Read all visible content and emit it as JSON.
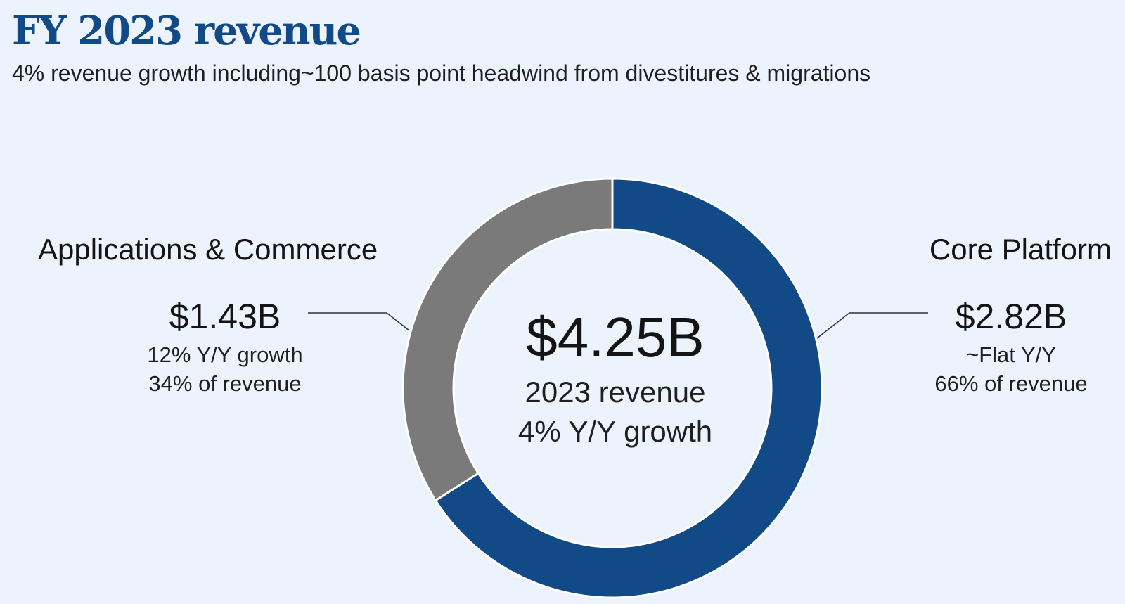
{
  "header": {
    "title": "FY 2023 revenue",
    "subtitle": "4% revenue growth including~100 basis point headwind from divestitures & migrations"
  },
  "center": {
    "total": "$4.25B",
    "line1": "2023 revenue",
    "line2": "4% Y/Y growth"
  },
  "segments": {
    "apps": {
      "name": "Applications & Commerce",
      "value": "$1.43B",
      "growth": "12% Y/Y growth",
      "share_text": "34% of revenue"
    },
    "core": {
      "name": "Core Platform",
      "value": "$2.82B",
      "growth": "~Flat Y/Y",
      "share_text": "66% of revenue"
    }
  },
  "chart_data": {
    "type": "pie",
    "donut": true,
    "total": 4.25,
    "unit": "$B",
    "slices": [
      {
        "name": "Core Platform",
        "value": 2.82,
        "percent": 66,
        "color": "#114a86"
      },
      {
        "name": "Applications & Commerce",
        "value": 1.43,
        "percent": 34,
        "color": "#7a7a7a"
      }
    ]
  },
  "colors": {
    "accent": "#114a86",
    "apps_segment": "#7a7a7a",
    "background": "#edf3fc"
  }
}
